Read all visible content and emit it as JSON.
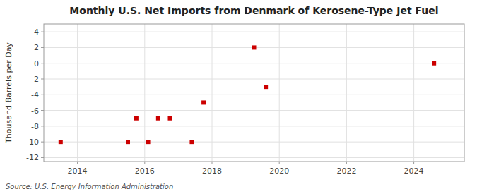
{
  "chart_data": {
    "type": "scatter",
    "title": "Monthly U.S. Net Imports from Denmark of Kerosene-Type Jet Fuel",
    "ylabel": "Thousand Barrels per Day",
    "source": "Source: U.S. Energy Information Administration",
    "x": [
      2013.5,
      2015.5,
      2015.75,
      2016.1,
      2016.4,
      2016.75,
      2017.4,
      2017.75,
      2019.25,
      2019.6,
      2024.6
    ],
    "values": [
      -10,
      -10,
      -7,
      -10,
      -7,
      -7,
      -10,
      -5,
      2,
      -3,
      0
    ],
    "color": "#cc0000",
    "marker": "square",
    "xlim": [
      2013.0,
      2025.5
    ],
    "ylim": [
      -12.5,
      5
    ],
    "xticks": [
      2014,
      2016,
      2018,
      2020,
      2022,
      2024
    ],
    "yticks": [
      -12,
      -10,
      -8,
      -6,
      -4,
      -2,
      0,
      2,
      4
    ],
    "grid": true
  }
}
